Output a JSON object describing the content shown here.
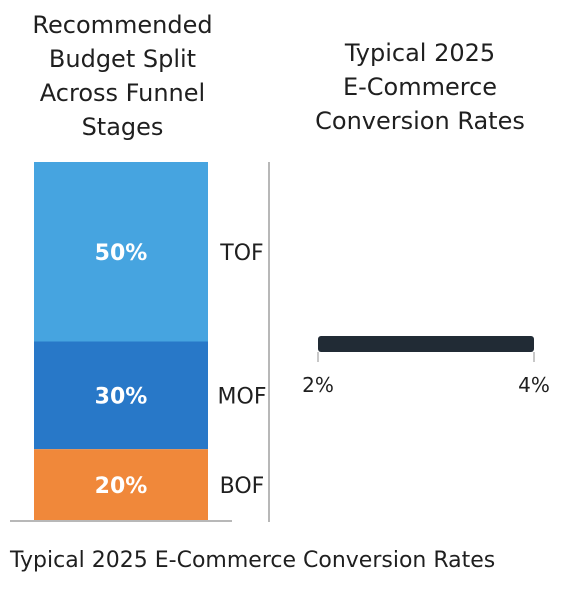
{
  "caption": "Typical 2025 E-Commerce Conversion Rates",
  "chart_data": [
    {
      "type": "bar",
      "stacked": true,
      "title": "Recommended Budget Split Across Funnel Stages",
      "title_lines": [
        "Recommended",
        "Budget Split",
        "Across Funnel",
        "Stages"
      ],
      "categories": [
        "TOF",
        "MOF",
        "BOF"
      ],
      "values": [
        50,
        30,
        20
      ],
      "value_labels": [
        "50%",
        "30%",
        "20%"
      ],
      "unit": "%",
      "colors": [
        "#46a4e0",
        "#2878c8",
        "#f0883a"
      ]
    },
    {
      "type": "bar",
      "orientation": "horizontal",
      "title": "Typical 2025 E-Commerce Conversion Rates",
      "title_lines": [
        "Typical 2025",
        "E-Commerce",
        "Conversion Rates"
      ],
      "range": [
        2,
        4
      ],
      "xlim": [
        2,
        4
      ],
      "xticks": [
        2,
        4
      ],
      "xtick_labels": [
        "2%",
        "4%"
      ],
      "unit": "%",
      "bar_color": "#212b35",
      "grid": false
    }
  ]
}
